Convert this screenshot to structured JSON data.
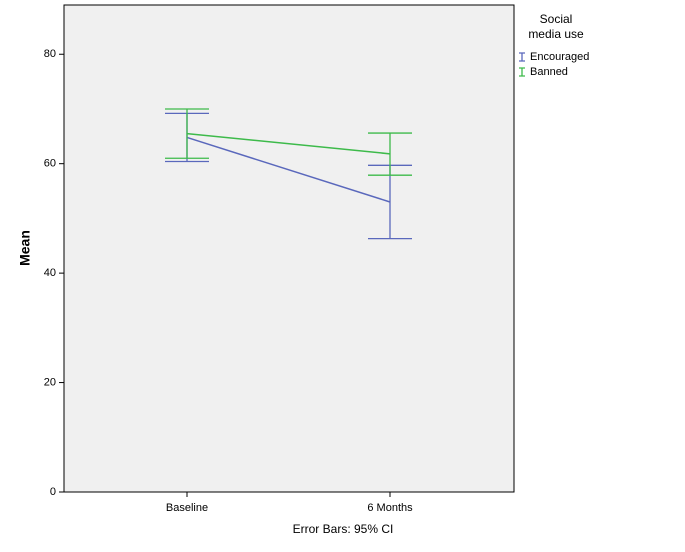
{
  "chart_data": {
    "type": "line",
    "y_label": "Mean",
    "annotation": "Error Bars: 95% CI",
    "legend_title": [
      "Social",
      "media use"
    ],
    "categories": [
      "Baseline",
      "6 Months"
    ],
    "series": [
      {
        "name": "Encouraged",
        "color": "#5a68bc",
        "values": [
          64.8,
          53.0
        ],
        "lower": [
          60.4,
          46.3
        ],
        "upper": [
          69.2,
          59.7
        ]
      },
      {
        "name": "Banned",
        "color": "#3dba4a",
        "values": [
          65.5,
          61.8
        ],
        "lower": [
          61.0,
          57.9
        ],
        "upper": [
          70.0,
          65.6
        ]
      }
    ],
    "ylim": [
      0,
      89
    ],
    "yticks": [
      0,
      20,
      40,
      60,
      80
    ],
    "grid": false,
    "legend": "right"
  }
}
